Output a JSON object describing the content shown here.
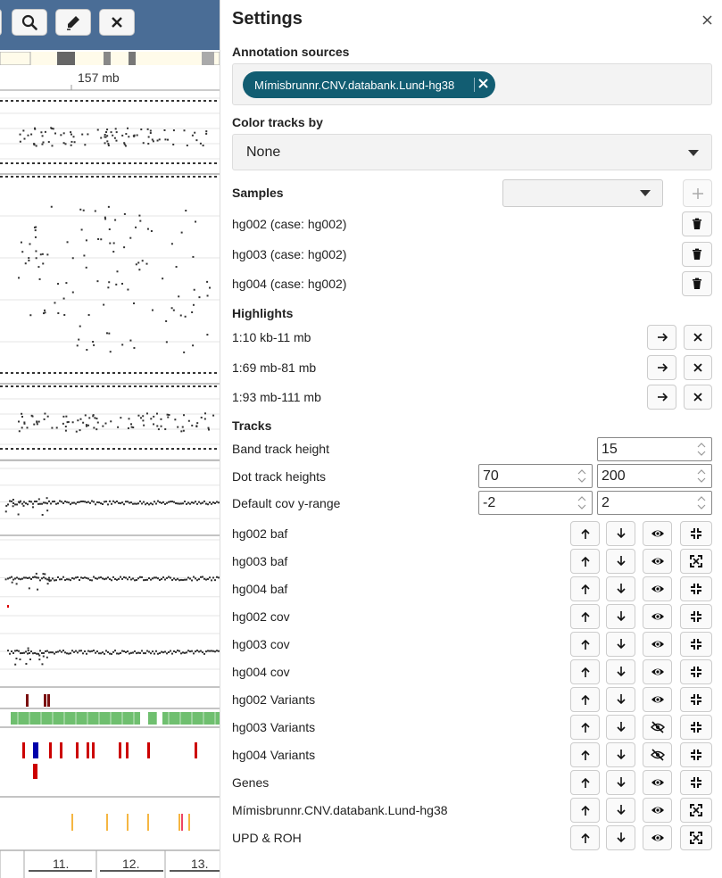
{
  "viewer": {
    "toolbar": {
      "zoom_icon": "search-icon",
      "pen_icon": "marker-icon",
      "close_icon": "close-icon",
      "bg_color": "#4a6d96"
    },
    "ruler_label": "157 mb",
    "chromosome_labels": [
      "11.",
      "12.",
      "13."
    ]
  },
  "settings": {
    "title": "Settings",
    "close_icon": "close-icon",
    "annotation_sources": {
      "label": "Annotation sources",
      "selected": [
        "Mímisbrunnr.CNV.databank.Lund-hg38"
      ]
    },
    "color_tracks_by": {
      "label": "Color tracks by",
      "value": "None"
    },
    "samples": {
      "label": "Samples",
      "select_value": "",
      "items": [
        {
          "label": "hg002 (case: hg002)"
        },
        {
          "label": "hg003 (case: hg002)"
        },
        {
          "label": "hg004 (case: hg002)"
        }
      ]
    },
    "highlights": {
      "label": "Highlights",
      "items": [
        {
          "label": "1:10 kb-11 mb"
        },
        {
          "label": "1:69 mb-81 mb"
        },
        {
          "label": "1:93 mb-111 mb"
        }
      ]
    },
    "tracks": {
      "label": "Tracks",
      "band_track_height": {
        "label": "Band track height",
        "value": "15"
      },
      "dot_track_heights": {
        "label": "Dot track heights",
        "value1": "70",
        "value2": "200"
      },
      "default_cov_y_range": {
        "label": "Default cov y-range",
        "value1": "-2",
        "value2": "2"
      },
      "items": [
        {
          "label": "hg002 baf",
          "visible": true,
          "expanded": false
        },
        {
          "label": "hg003 baf",
          "visible": true,
          "expanded": true
        },
        {
          "label": "hg004 baf",
          "visible": true,
          "expanded": false
        },
        {
          "label": "hg002 cov",
          "visible": true,
          "expanded": false
        },
        {
          "label": "hg003 cov",
          "visible": true,
          "expanded": false
        },
        {
          "label": "hg004 cov",
          "visible": true,
          "expanded": false
        },
        {
          "label": "hg002 Variants",
          "visible": true,
          "expanded": false
        },
        {
          "label": "hg003 Variants",
          "visible": false,
          "expanded": false
        },
        {
          "label": "hg004 Variants",
          "visible": false,
          "expanded": false
        },
        {
          "label": "Genes",
          "visible": true,
          "expanded": false
        },
        {
          "label": "Mímisbrunnr.CNV.databank.Lund-hg38",
          "visible": true,
          "expanded": true
        },
        {
          "label": "UPD & ROH",
          "visible": true,
          "expanded": true
        }
      ]
    },
    "accent_color": "#125d72"
  }
}
